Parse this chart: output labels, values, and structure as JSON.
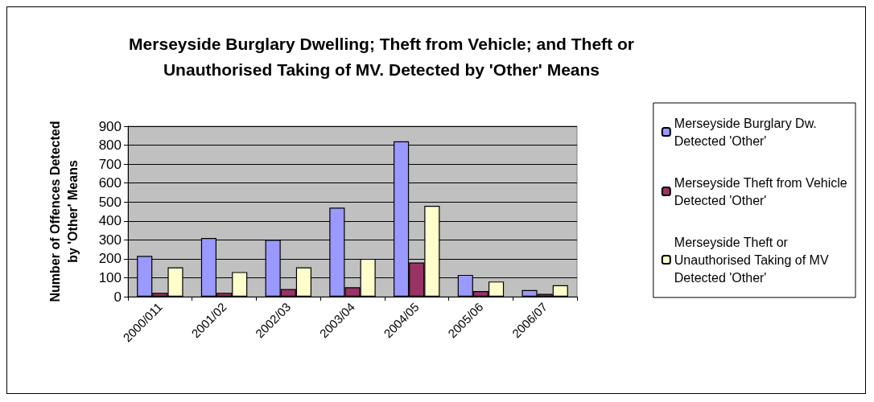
{
  "chart_data": {
    "type": "bar",
    "title": "Merseyside Burglary Dwelling; Theft from Vehicle; and Theft or\nUnauthorised Taking of MV. Detected by 'Other' Means",
    "ylabel": "Number of Offences Detected\nby 'Other' Means",
    "categories": [
      "2000/011",
      "2001/02",
      "2002/03",
      "2003/04",
      "2004/05",
      "2005/06",
      "2006/07"
    ],
    "series": [
      {
        "name": "Merseyside Burglary Dw.\nDetected 'Other'",
        "color": "#9999ff",
        "values": [
          215,
          310,
          300,
          470,
          820,
          115,
          35
        ]
      },
      {
        "name": "Merseyside Theft from Vehicle\nDetected 'Other'",
        "color": "#993366",
        "values": [
          20,
          20,
          40,
          50,
          180,
          30,
          15
        ]
      },
      {
        "name": "Merseyside Theft or\nUnauthorised Taking of MV\nDetected 'Other'",
        "color": "#ffffcc",
        "values": [
          155,
          130,
          155,
          200,
          480,
          80,
          60
        ]
      }
    ],
    "ylim": [
      0,
      900
    ],
    "yticks": [
      0,
      100,
      200,
      300,
      400,
      500,
      600,
      700,
      800,
      900
    ],
    "grid": "y",
    "legend": "right"
  }
}
